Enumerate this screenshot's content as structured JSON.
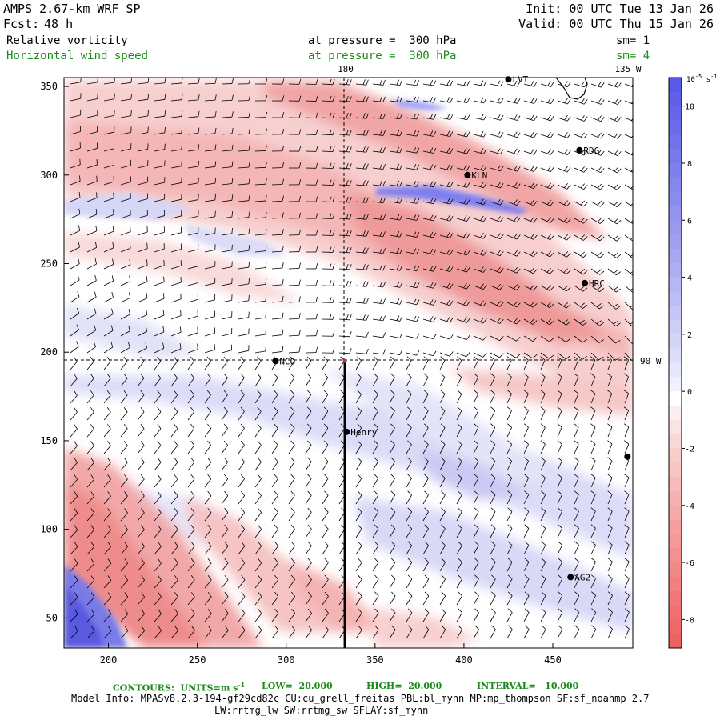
{
  "header": {
    "model": "AMPS 2.67-km WRF SP",
    "fcst_label": "Fcst:",
    "fcst_hours": "48 h",
    "init": "Init: 00 UTC Tue 13 Jan 26",
    "valid": "Valid: 00 UTC Thu 15 Jan 26",
    "field1": "Relative vorticity",
    "field1_pressure": "at pressure =  300 hPa",
    "field1_sm": "sm= 1",
    "field2": "Horizontal wind speed",
    "field2_pressure": "at pressure =  300 hPa",
    "field2_sm": "sm= 4"
  },
  "map": {
    "x_ticks": [
      "200",
      "250",
      "300",
      "350",
      "400",
      "450"
    ],
    "y_ticks": [
      "350",
      "300",
      "250",
      "200",
      "150",
      "100",
      "50"
    ],
    "x_range": [
      175,
      495
    ],
    "y_range": [
      33,
      355
    ],
    "meridian_labels": [
      "180",
      "135 W",
      "90 W"
    ],
    "meridian_x": 333,
    "parallel_y": 195,
    "stations": [
      {
        "name": "LVT",
        "x": 425,
        "y": 354
      },
      {
        "name": "RDG",
        "x": 465,
        "y": 314
      },
      {
        "name": "KLN",
        "x": 402,
        "y": 300
      },
      {
        "name": "HRC",
        "x": 468,
        "y": 239
      },
      {
        "name": "NCO",
        "x": 294,
        "y": 195
      },
      {
        "name": "Henry",
        "x": 334,
        "y": 155
      },
      {
        "name": "AG2",
        "x": 460,
        "y": 73
      },
      {
        "name": "",
        "x": 492,
        "y": 141
      }
    ],
    "cross_section": {
      "x": 333,
      "y_from": 195,
      "y_to": 33
    }
  },
  "colorbar": {
    "unit": "10^-5 s^-1",
    "ticks": [
      "10",
      "8",
      "6",
      "4",
      "2",
      "0",
      "-2",
      "-4",
      "-6",
      "-8"
    ],
    "range": [
      -9,
      11
    ],
    "positive_color": "#5a5ae8",
    "negative_color": "#ee5a5a"
  },
  "footer": {
    "contours": "CONTOURS:  UNITS=m s",
    "contours_exp": "-1",
    "low": "LOW=  20.000",
    "high": "HIGH=  20.000",
    "interval": "INTERVAL=   10.000",
    "model_info": "Model Info: MPASv8.2.3-194-gf29cd82c CU:cu_grell_freitas PBL:bl_mynn MP:mp_thompson SF:sf_noahmp 2.7",
    "model_info2": "LW:rrtmg_lw SW:rrtmg_sw SFLAY:sf_mynn"
  }
}
